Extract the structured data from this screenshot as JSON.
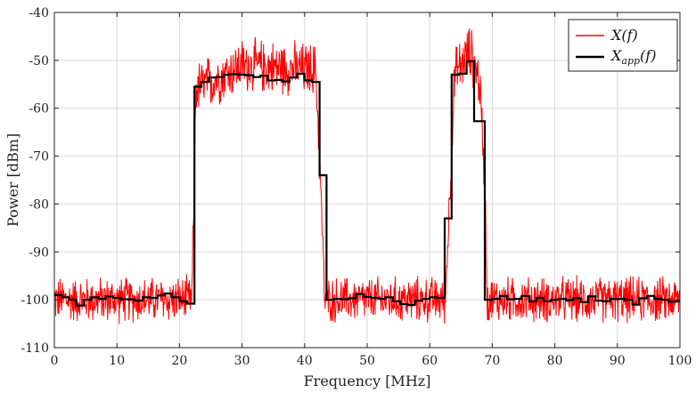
{
  "chart_data": {
    "type": "line",
    "title": "",
    "xlabel": "Frequency [MHz]",
    "ylabel": "Power [dBm]",
    "xlim": [
      0,
      100
    ],
    "ylim": [
      -110,
      -40
    ],
    "xticks": [
      "0",
      "10",
      "20",
      "30",
      "40",
      "50",
      "60",
      "70",
      "80",
      "90",
      "100"
    ],
    "yticks": [
      "-40",
      "-50",
      "-60",
      "-70",
      "-80",
      "-90",
      "-100",
      "-110"
    ],
    "grid": true,
    "legend_position": "top-right",
    "series": [
      {
        "name": "X(f)",
        "color": "#ff0000",
        "description_points": [
          [
            0,
            -100
          ],
          [
            22,
            -100
          ],
          [
            22.6,
            -56
          ],
          [
            30,
            -51
          ],
          [
            41.8,
            -52
          ],
          [
            42.5,
            -74
          ],
          [
            43.2,
            -100
          ],
          [
            62.5,
            -100
          ],
          [
            63,
            -84
          ],
          [
            64,
            -53
          ],
          [
            66.5,
            -48
          ],
          [
            68,
            -55
          ],
          [
            68.8,
            -75
          ],
          [
            69.2,
            -100
          ],
          [
            100,
            -100
          ]
        ]
      },
      {
        "name": "X_app(f)",
        "color": "#000000",
        "steps": [
          [
            0,
            -99
          ],
          [
            1.2,
            -99.5
          ],
          [
            2.4,
            -100
          ],
          [
            3.5,
            -101.2
          ],
          [
            4.7,
            -100
          ],
          [
            5.9,
            -99.5
          ],
          [
            7.1,
            -99.8
          ],
          [
            8.2,
            -99.3
          ],
          [
            9.4,
            -99.6
          ],
          [
            10.6,
            -99.9
          ],
          [
            11.8,
            -99.9
          ],
          [
            12.9,
            -100.2
          ],
          [
            14.1,
            -99.5
          ],
          [
            15.3,
            -99.6
          ],
          [
            16.5,
            -99.1
          ],
          [
            17.6,
            -98.7
          ],
          [
            18.8,
            -99.5
          ],
          [
            20,
            -100.3
          ],
          [
            21.2,
            -100.8
          ],
          [
            22.4,
            -55.5
          ],
          [
            23.5,
            -54.5
          ],
          [
            24.7,
            -53.6
          ],
          [
            25.9,
            -53.5
          ],
          [
            27.1,
            -53
          ],
          [
            28.2,
            -52.9
          ],
          [
            29.4,
            -53
          ],
          [
            30.6,
            -53.1
          ],
          [
            31.8,
            -53.5
          ],
          [
            32.9,
            -53.2
          ],
          [
            34.1,
            -54.2
          ],
          [
            35.3,
            -54.1
          ],
          [
            36.5,
            -54.4
          ],
          [
            37.6,
            -53.6
          ],
          [
            38.8,
            -52.8
          ],
          [
            40,
            -54.2
          ],
          [
            41.2,
            -54.5
          ],
          [
            42.4,
            -74
          ],
          [
            43.5,
            -100
          ],
          [
            44.7,
            -99.8
          ],
          [
            45.9,
            -99.9
          ],
          [
            47.1,
            -99.7
          ],
          [
            48.2,
            -98.8
          ],
          [
            49.4,
            -99.4
          ],
          [
            50.6,
            -99.6
          ],
          [
            51.8,
            -99.8
          ],
          [
            52.9,
            -99.5
          ],
          [
            54.1,
            -100.3
          ],
          [
            55.3,
            -100.9
          ],
          [
            56.5,
            -101.1
          ],
          [
            57.6,
            -100.2
          ],
          [
            58.8,
            -99.8
          ],
          [
            60,
            -99.5
          ],
          [
            61.2,
            -99.6
          ],
          [
            62.4,
            -83
          ],
          [
            63.5,
            -53
          ],
          [
            64.7,
            -52.8
          ],
          [
            65.9,
            -50.2
          ],
          [
            67.1,
            -62.7
          ],
          [
            68.2,
            -62.7
          ],
          [
            68.8,
            -100
          ],
          [
            70,
            -99.8
          ],
          [
            71.2,
            -99.2
          ],
          [
            72.4,
            -99.9
          ],
          [
            73.5,
            -99.8
          ],
          [
            74.7,
            -99.2
          ],
          [
            75.9,
            -100.3
          ],
          [
            77.1,
            -99.6
          ],
          [
            78.2,
            -100.3
          ],
          [
            79.4,
            -100
          ],
          [
            80.6,
            -99.8
          ],
          [
            81.8,
            -100.1
          ],
          [
            82.9,
            -99.7
          ],
          [
            84.1,
            -100.5
          ],
          [
            85.3,
            -99.3
          ],
          [
            86.5,
            -100.2
          ],
          [
            87.6,
            -100.3
          ],
          [
            88.8,
            -99.8
          ],
          [
            90,
            -99.8
          ],
          [
            91.2,
            -100
          ],
          [
            92.4,
            -101
          ],
          [
            93.5,
            -99.7
          ],
          [
            94.7,
            -99.2
          ],
          [
            95.9,
            -99.8
          ],
          [
            97.1,
            -100
          ],
          [
            98.2,
            -100.4
          ],
          [
            99.4,
            -100.3
          ],
          [
            100,
            -100.3
          ]
        ]
      }
    ]
  },
  "legend": {
    "entries": [
      {
        "main": "X(f)",
        "sub": ""
      },
      {
        "main": "X",
        "sub": "app",
        "tail": "(f)"
      }
    ]
  }
}
